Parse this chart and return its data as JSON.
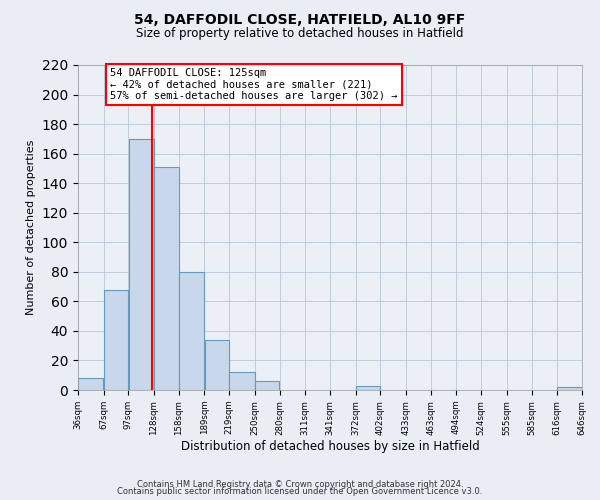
{
  "title": "54, DAFFODIL CLOSE, HATFIELD, AL10 9FF",
  "subtitle": "Size of property relative to detached houses in Hatfield",
  "xlabel": "Distribution of detached houses by size in Hatfield",
  "ylabel": "Number of detached properties",
  "bar_color": "#c8d8ea",
  "bar_edge_color": "#6699bb",
  "vline_x": 125,
  "vline_color": "red",
  "annotation_line1": "54 DAFFODIL CLOSE: 125sqm",
  "annotation_line2": "← 42% of detached houses are smaller (221)",
  "annotation_line3": "57% of semi-detached houses are larger (302) →",
  "bin_edges": [
    36,
    67,
    97,
    128,
    158,
    189,
    219,
    250,
    280,
    311,
    341,
    372,
    402,
    433,
    463,
    494,
    524,
    555,
    585,
    616,
    646
  ],
  "bin_counts": [
    8,
    68,
    170,
    151,
    80,
    34,
    12,
    6,
    0,
    0,
    0,
    3,
    0,
    0,
    0,
    0,
    0,
    0,
    0,
    2
  ],
  "tick_labels": [
    "36sqm",
    "67sqm",
    "97sqm",
    "128sqm",
    "158sqm",
    "189sqm",
    "219sqm",
    "250sqm",
    "280sqm",
    "311sqm",
    "341sqm",
    "372sqm",
    "402sqm",
    "433sqm",
    "463sqm",
    "494sqm",
    "524sqm",
    "555sqm",
    "585sqm",
    "616sqm",
    "646sqm"
  ],
  "ylim": [
    0,
    220
  ],
  "yticks": [
    0,
    20,
    40,
    60,
    80,
    100,
    120,
    140,
    160,
    180,
    200,
    220
  ],
  "footer_line1": "Contains HM Land Registry data © Crown copyright and database right 2024.",
  "footer_line2": "Contains public sector information licensed under the Open Government Licence v3.0.",
  "background_color": "#e8eef4",
  "plot_bg_color": "#eaf0f6"
}
